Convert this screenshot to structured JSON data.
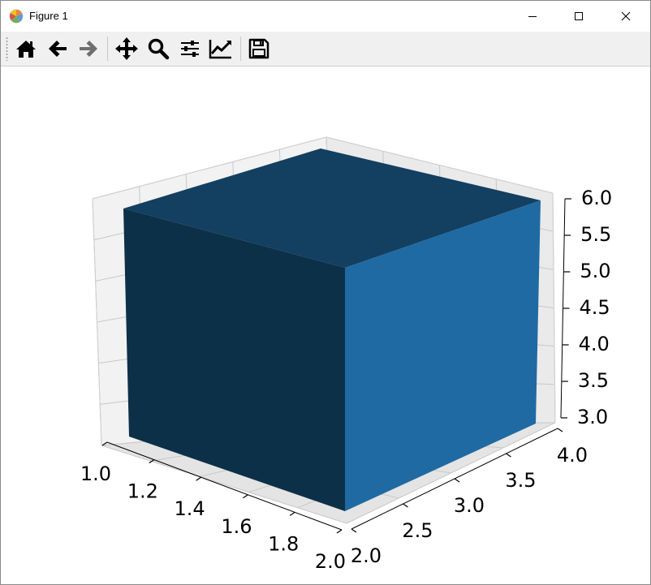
{
  "window": {
    "title": "Figure 1",
    "icon": "matplotlib-logo-icon",
    "controls": [
      "minimize-icon",
      "maximize-icon",
      "close-icon"
    ]
  },
  "toolbar": {
    "buttons": [
      {
        "icon": "home-icon"
      },
      {
        "icon": "arrow-left-icon"
      },
      {
        "icon": "arrow-right-icon"
      },
      {
        "icon": "pan-move-icon"
      },
      {
        "icon": "zoom-magnifier-icon"
      },
      {
        "icon": "configure-subplots-icon"
      },
      {
        "icon": "edit-axis-icon"
      },
      {
        "icon": "save-floppy-icon"
      }
    ]
  },
  "chart_data": {
    "type": "3d-voxel",
    "title": "",
    "xlabel": "",
    "ylabel": "",
    "zlabel": "",
    "x_ticks": [
      "1.0",
      "1.2",
      "1.4",
      "1.6",
      "1.8",
      "2.0"
    ],
    "y_ticks": [
      "2.0",
      "2.5",
      "3.0",
      "3.5",
      "4.0"
    ],
    "z_ticks": [
      "3.0",
      "3.5",
      "4.0",
      "4.5",
      "5.0",
      "5.5",
      "6.0"
    ],
    "xlim": [
      1.0,
      2.0
    ],
    "ylim": [
      2.0,
      4.0
    ],
    "zlim": [
      3.0,
      6.0
    ],
    "grid": true,
    "box": {
      "x": [
        1.0,
        2.0
      ],
      "y": [
        2.0,
        4.0
      ],
      "z": [
        3.0,
        6.0
      ]
    },
    "colors": {
      "face_front": "#0d3049",
      "face_right": "#1f6aa3",
      "face_top": "#133f61",
      "pane": "#f2f2f2",
      "grid": "#c8c8c8"
    }
  }
}
